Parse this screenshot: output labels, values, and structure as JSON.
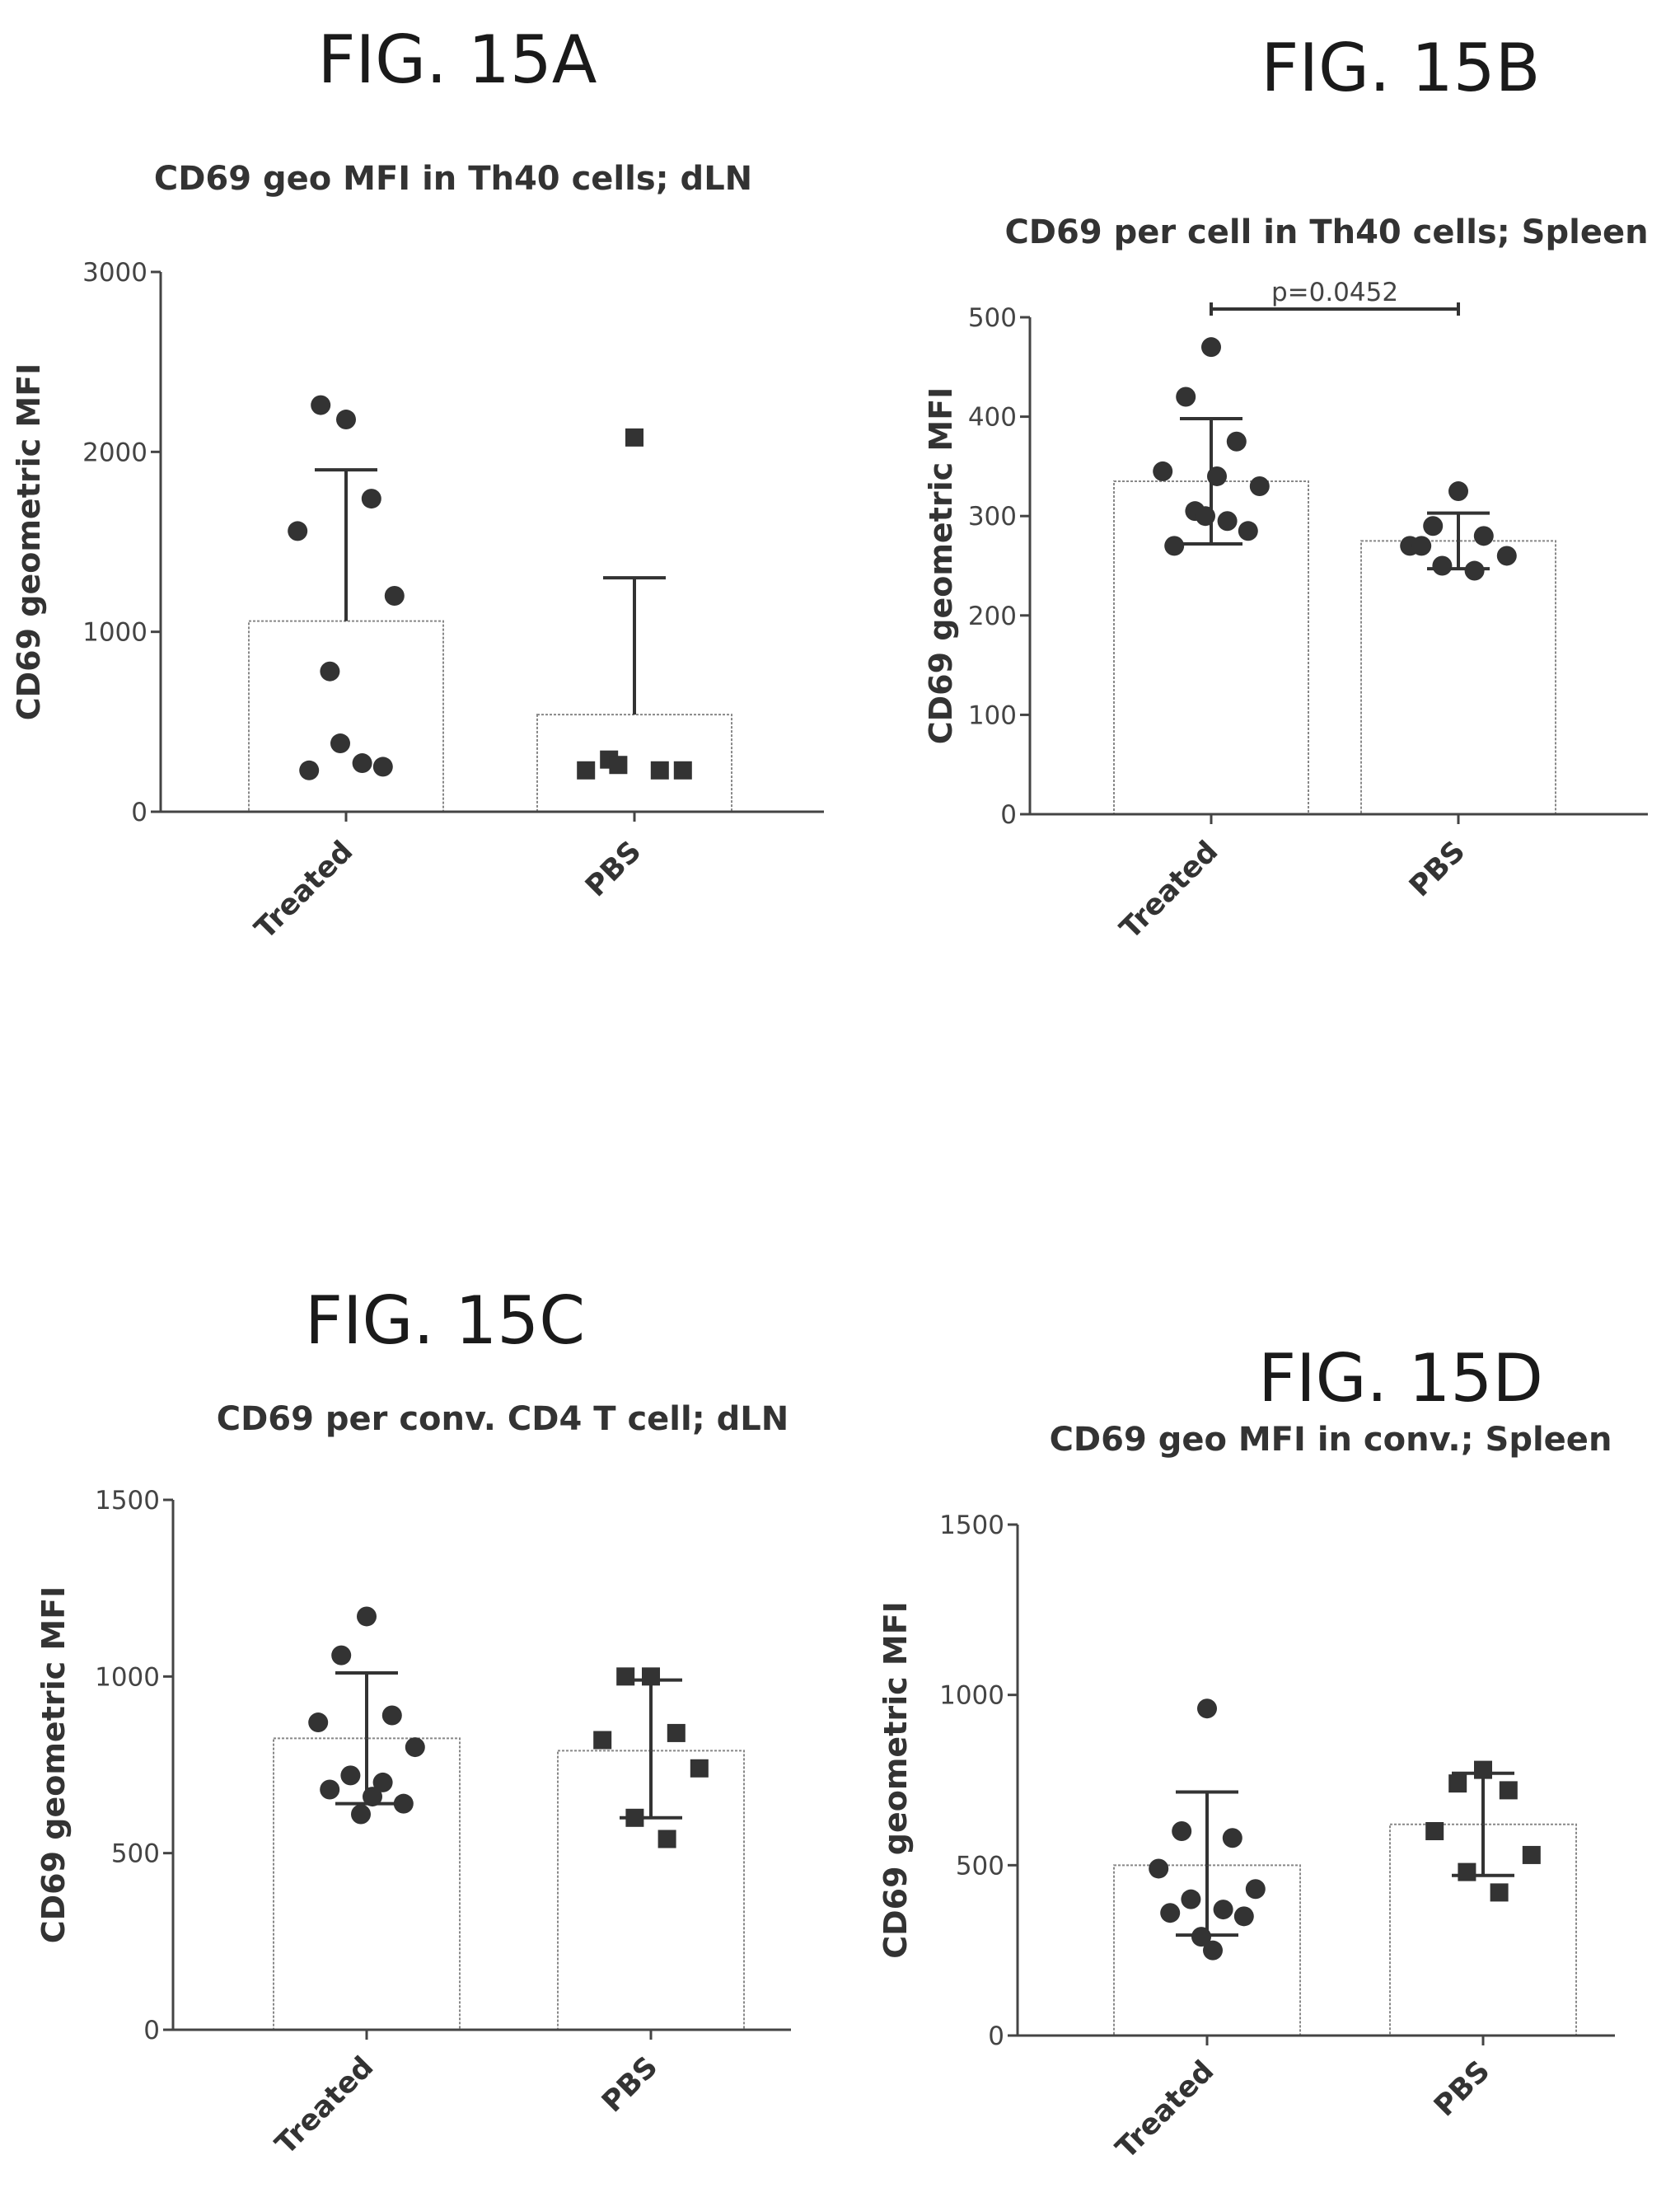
{
  "figures": [
    {
      "label": "FIG. 15A"
    },
    {
      "label": "FIG. 15B"
    },
    {
      "label": "FIG. 15C"
    },
    {
      "label": "FIG. 15D"
    }
  ],
  "chart_data": [
    {
      "type": "bar",
      "title": "CD69 geo MFI in Th40 cells; dLN",
      "ylabel": "CD69 geometric MFI",
      "xlabel": "",
      "ylim": [
        0,
        3000
      ],
      "yticks": [
        0,
        1000,
        2000,
        3000
      ],
      "categories": [
        "Treated",
        "PBS"
      ],
      "bar_values": [
        1060,
        540
      ],
      "error_upper": [
        1900,
        1300
      ],
      "error_lower": [],
      "points": [
        {
          "group": "Treated",
          "marker": "circle",
          "values": [
            2180,
            2260,
            1740,
            1560,
            1200,
            780,
            270,
            230,
            250,
            380
          ]
        },
        {
          "group": "PBS",
          "marker": "square",
          "values": [
            2080,
            290,
            230,
            230,
            230,
            260
          ]
        }
      ],
      "annotations": []
    },
    {
      "type": "bar",
      "title": "CD69 per cell in Th40 cells; Spleen",
      "ylabel": "CD69 geometric MFI",
      "xlabel": "",
      "ylim": [
        0,
        500
      ],
      "yticks": [
        0,
        100,
        200,
        300,
        400,
        500
      ],
      "categories": [
        "Treated",
        "PBS"
      ],
      "bar_values": [
        335,
        275
      ],
      "error_upper": [
        398,
        303
      ],
      "error_lower": [
        272,
        247
      ],
      "points": [
        {
          "group": "Treated",
          "marker": "circle",
          "values": [
            470,
            420,
            375,
            345,
            330,
            305,
            295,
            270,
            285,
            300,
            340
          ]
        },
        {
          "group": "PBS",
          "marker": "circle",
          "values": [
            325,
            290,
            280,
            270,
            260,
            250,
            245,
            270
          ]
        }
      ],
      "annotations": [
        {
          "text": "p=0.0452",
          "between": [
            "Treated",
            "PBS"
          ]
        }
      ]
    },
    {
      "type": "bar",
      "title": "CD69 per conv. CD4 T cell; dLN",
      "ylabel": "CD69 geometric MFI",
      "xlabel": "",
      "ylim": [
        0,
        1500
      ],
      "yticks": [
        0,
        500,
        1000,
        1500
      ],
      "categories": [
        "Treated",
        "PBS"
      ],
      "bar_values": [
        825,
        790
      ],
      "error_upper": [
        1010,
        990
      ],
      "error_lower": [
        640,
        600
      ],
      "points": [
        {
          "group": "Treated",
          "marker": "circle",
          "values": [
            1170,
            1060,
            890,
            870,
            800,
            720,
            700,
            680,
            640,
            610,
            660
          ]
        },
        {
          "group": "PBS",
          "marker": "square",
          "values": [
            1000,
            1000,
            840,
            820,
            740,
            600,
            540
          ]
        }
      ],
      "annotations": []
    },
    {
      "type": "bar",
      "title": "CD69 geo MFI in conv.; Spleen",
      "ylabel": "CD69 geometric MFI",
      "xlabel": "",
      "ylim": [
        0,
        1500
      ],
      "yticks": [
        0,
        500,
        1000,
        1500
      ],
      "categories": [
        "Treated",
        "PBS"
      ],
      "bar_values": [
        500,
        620
      ],
      "error_upper": [
        715,
        770
      ],
      "error_lower": [
        295,
        470
      ],
      "points": [
        {
          "group": "Treated",
          "marker": "circle",
          "values": [
            960,
            600,
            580,
            490,
            430,
            400,
            370,
            360,
            350,
            290,
            250
          ]
        },
        {
          "group": "PBS",
          "marker": "square",
          "values": [
            780,
            740,
            720,
            600,
            530,
            480,
            420
          ]
        }
      ],
      "annotations": []
    }
  ]
}
